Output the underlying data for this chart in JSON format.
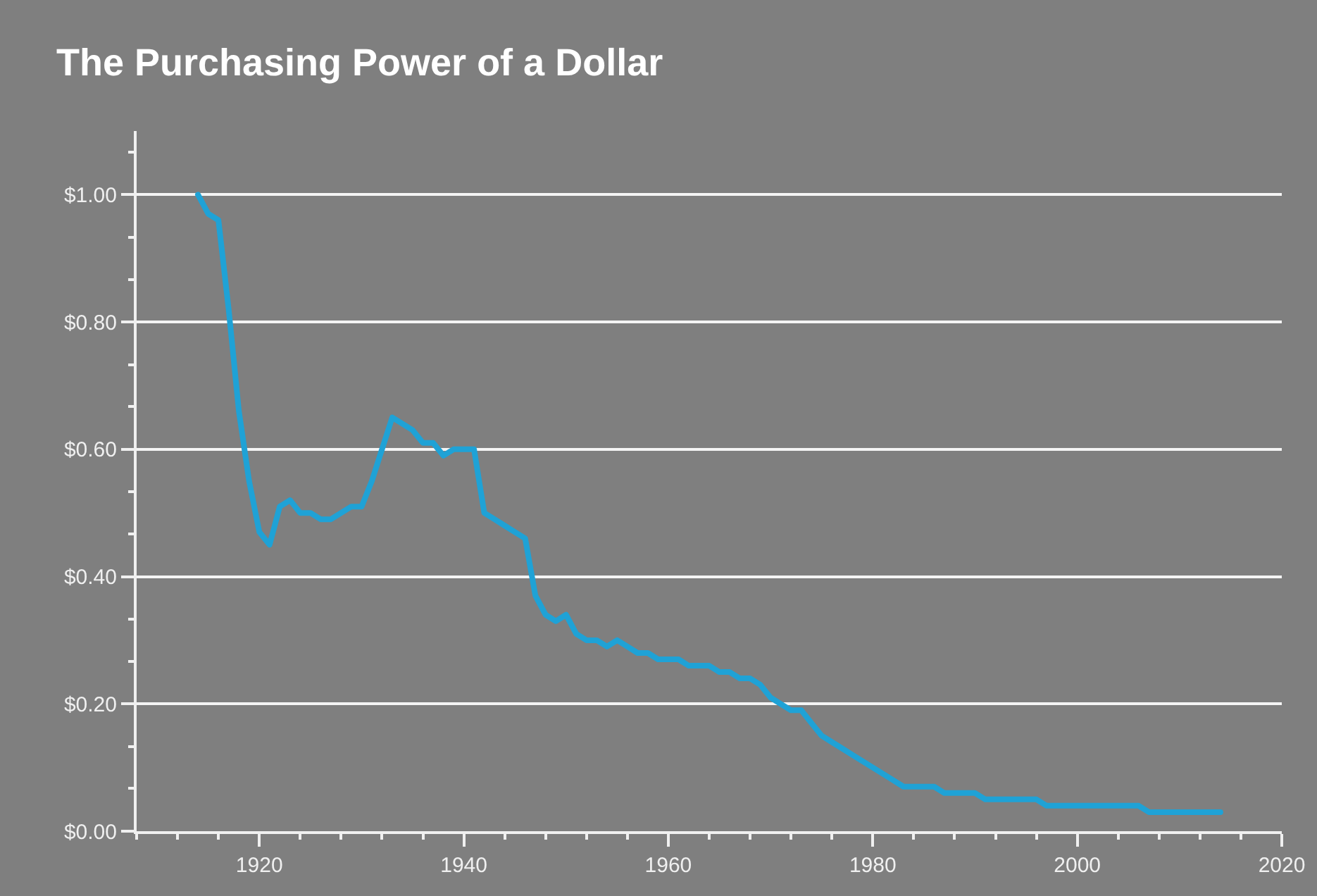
{
  "chart_data": {
    "type": "line",
    "title": "The Purchasing Power of a Dollar",
    "x": [
      1914,
      1915,
      1916,
      1917,
      1918,
      1919,
      1920,
      1921,
      1922,
      1923,
      1924,
      1925,
      1926,
      1927,
      1928,
      1929,
      1930,
      1931,
      1932,
      1933,
      1934,
      1935,
      1936,
      1937,
      1938,
      1939,
      1940,
      1941,
      1942,
      1943,
      1944,
      1945,
      1946,
      1947,
      1948,
      1949,
      1950,
      1951,
      1952,
      1953,
      1954,
      1955,
      1956,
      1957,
      1958,
      1959,
      1960,
      1961,
      1962,
      1963,
      1964,
      1965,
      1966,
      1967,
      1968,
      1969,
      1970,
      1971,
      1972,
      1973,
      1974,
      1975,
      1976,
      1977,
      1978,
      1979,
      1980,
      1981,
      1982,
      1983,
      1984,
      1985,
      1986,
      1987,
      1988,
      1989,
      1990,
      1991,
      1992,
      1993,
      1994,
      1995,
      1996,
      1997,
      1998,
      1999,
      2000,
      2001,
      2002,
      2003,
      2004,
      2005,
      2006,
      2007,
      2008,
      2009,
      2010,
      2011,
      2012,
      2013,
      2014
    ],
    "series": [
      {
        "color": "#1fa2d6",
        "values": [
          1.0,
          0.97,
          0.96,
          0.82,
          0.66,
          0.55,
          0.47,
          0.45,
          0.51,
          0.52,
          0.5,
          0.5,
          0.49,
          0.49,
          0.5,
          0.51,
          0.51,
          0.55,
          0.6,
          0.65,
          0.64,
          0.63,
          0.61,
          0.61,
          0.59,
          0.6,
          0.6,
          0.6,
          0.5,
          0.49,
          0.48,
          0.47,
          0.46,
          0.37,
          0.34,
          0.33,
          0.34,
          0.31,
          0.3,
          0.3,
          0.29,
          0.3,
          0.29,
          0.28,
          0.28,
          0.27,
          0.27,
          0.27,
          0.26,
          0.26,
          0.26,
          0.25,
          0.25,
          0.24,
          0.24,
          0.23,
          0.21,
          0.2,
          0.19,
          0.19,
          0.17,
          0.15,
          0.14,
          0.13,
          0.12,
          0.11,
          0.1,
          0.09,
          0.08,
          0.07,
          0.07,
          0.07,
          0.07,
          0.06,
          0.06,
          0.06,
          0.06,
          0.05,
          0.05,
          0.05,
          0.05,
          0.05,
          0.05,
          0.04,
          0.04,
          0.04,
          0.04,
          0.04,
          0.04,
          0.04,
          0.04,
          0.04,
          0.04,
          0.03,
          0.03,
          0.03,
          0.03,
          0.03,
          0.03,
          0.03,
          0.03
        ]
      }
    ],
    "xlim": [
      1908,
      2020
    ],
    "xticks": [
      {
        "value": 1908,
        "label": null
      },
      {
        "value": 1912,
        "label": null
      },
      {
        "value": 1916,
        "label": null
      },
      1920,
      {
        "value": 1924,
        "label": null
      },
      {
        "value": 1928,
        "label": null
      },
      {
        "value": 1932,
        "label": null
      },
      {
        "value": 1936,
        "label": null
      },
      1940,
      {
        "value": 1944,
        "label": null
      },
      {
        "value": 1948,
        "label": null
      },
      {
        "value": 1952,
        "label": null
      },
      {
        "value": 1956,
        "label": null
      },
      1960,
      {
        "value": 1964,
        "label": null
      },
      {
        "value": 1968,
        "label": null
      },
      {
        "value": 1972,
        "label": null
      },
      {
        "value": 1976,
        "label": null
      },
      1980,
      {
        "value": 1984,
        "label": null
      },
      {
        "value": 1988,
        "label": null
      },
      {
        "value": 1992,
        "label": null
      },
      {
        "value": 1996,
        "label": null
      },
      2000,
      {
        "value": 2004,
        "label": null
      },
      {
        "value": 2008,
        "label": null
      },
      {
        "value": 2012,
        "label": null
      },
      {
        "value": 2016,
        "label": null
      },
      2020
    ],
    "ylim": [
      0,
      1.1
    ],
    "yticks": [
      {
        "value": 0,
        "label": "$0.00"
      },
      {
        "value": 0.067,
        "label": null
      },
      {
        "value": 0.133,
        "label": null
      },
      {
        "value": 0.2,
        "label": "$0.20"
      },
      {
        "value": 0.267,
        "label": null
      },
      {
        "value": 0.333,
        "label": null
      },
      {
        "value": 0.4,
        "label": "$0.40"
      },
      {
        "value": 0.467,
        "label": null
      },
      {
        "value": 0.533,
        "label": null
      },
      {
        "value": 0.6,
        "label": "$0.60"
      },
      {
        "value": 0.667,
        "label": null
      },
      {
        "value": 0.733,
        "label": null
      },
      {
        "value": 0.8,
        "label": "$0.80"
      },
      {
        "value": 0.867,
        "label": null
      },
      {
        "value": 0.933,
        "label": null
      },
      {
        "value": 1.0,
        "label": "$1.00"
      },
      {
        "value": 1.067,
        "label": null
      }
    ],
    "grid": "y",
    "line_style": "solid"
  }
}
